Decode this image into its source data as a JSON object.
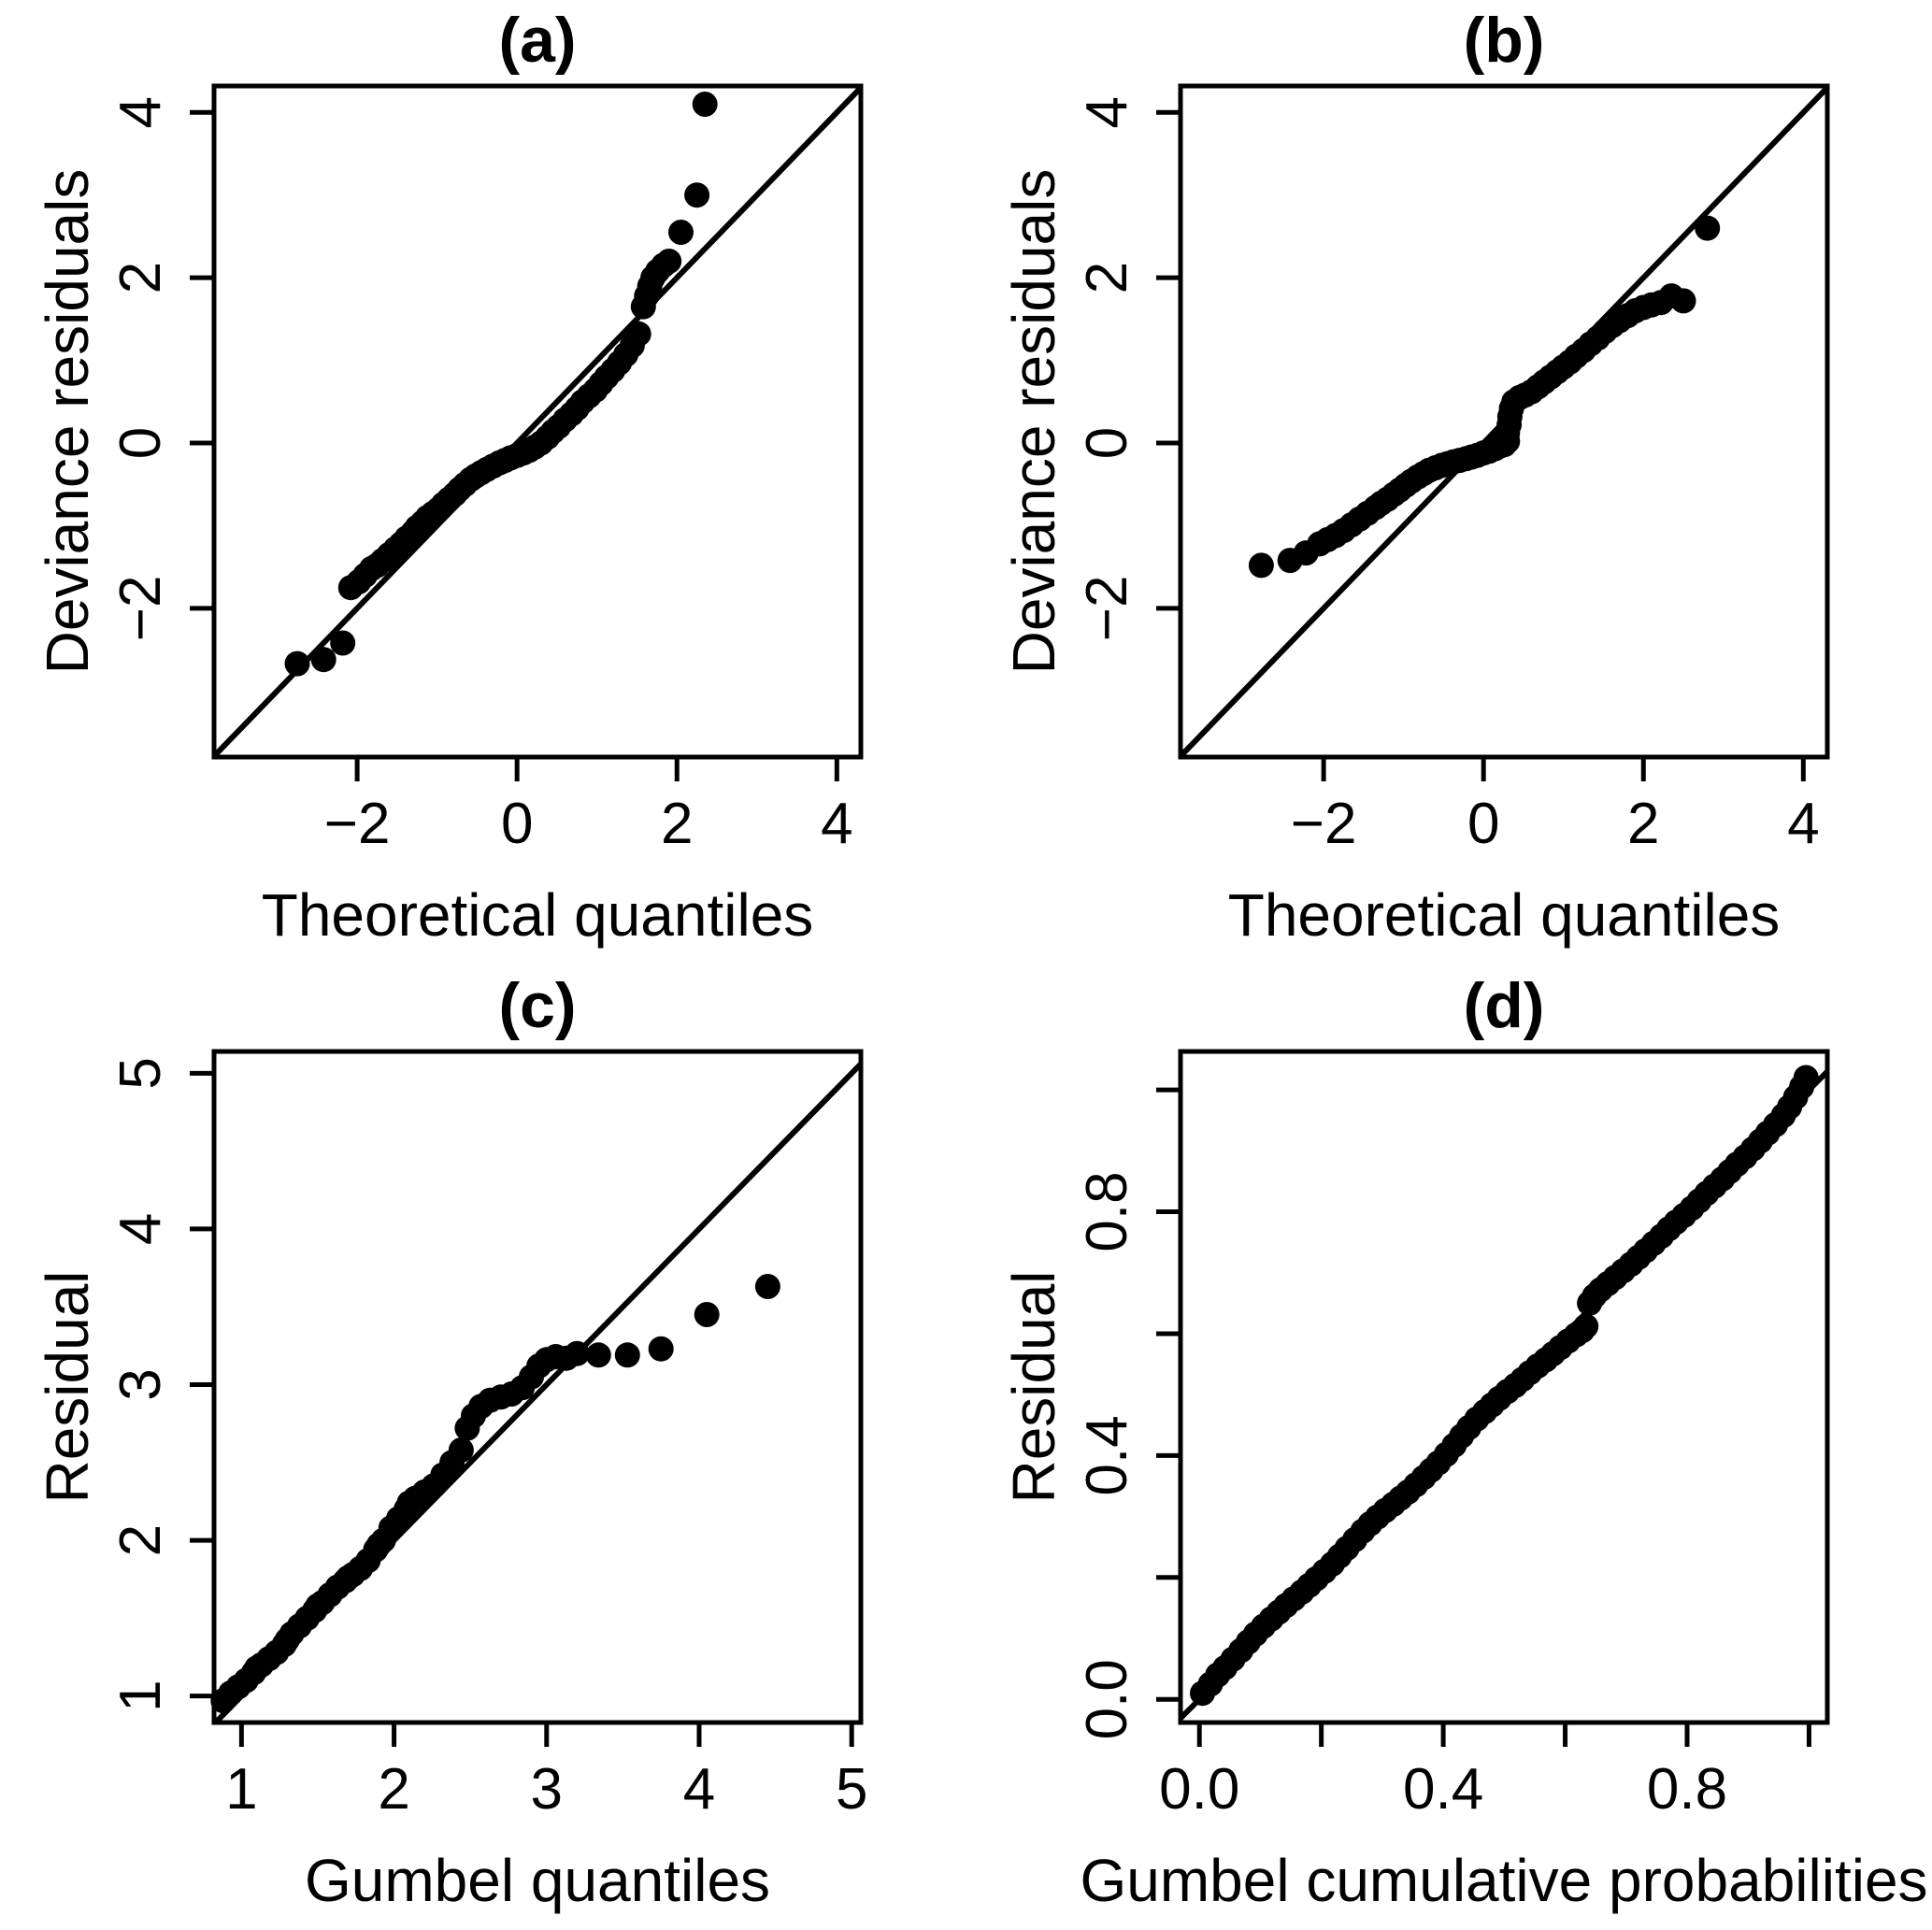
{
  "figure": {
    "background": "#ffffff",
    "foreground": "#000000",
    "description_visible_text_only": true
  },
  "chart_data": [
    {
      "panel": "a",
      "type": "scatter",
      "title": "(a)",
      "xlabel": "Theoretical quantiles",
      "ylabel": "Deviance residuals",
      "xlim": [
        -3.79,
        4.3
      ],
      "ylim": [
        -3.8,
        4.32
      ],
      "xticks": [
        -2,
        0,
        2,
        4
      ],
      "xtick_labels": [
        "−2",
        "0",
        "2",
        "4"
      ],
      "yticks": [
        -2,
        0,
        2,
        4
      ],
      "ytick_labels": [
        "−2",
        "0",
        "2",
        "4"
      ],
      "identity_line": true,
      "grid": false,
      "legend": null,
      "marker_color": "#000000",
      "points": [
        [
          -2.75,
          -2.67
        ],
        [
          -2.42,
          -2.62
        ],
        [
          -2.18,
          -2.42
        ],
        [
          -2.08,
          -1.75
        ],
        [
          -1.98,
          -1.68
        ],
        [
          -1.9,
          -1.6
        ],
        [
          -1.82,
          -1.52
        ],
        [
          -1.75,
          -1.48
        ],
        [
          -1.68,
          -1.42
        ],
        [
          -1.6,
          -1.35
        ],
        [
          -1.52,
          -1.28
        ],
        [
          -1.45,
          -1.22
        ],
        [
          -1.38,
          -1.15
        ],
        [
          -1.3,
          -1.08
        ],
        [
          -1.25,
          -1.02
        ],
        [
          -1.18,
          -0.96
        ],
        [
          -1.12,
          -0.9
        ],
        [
          -1.05,
          -0.85
        ],
        [
          -0.98,
          -0.8
        ],
        [
          -0.92,
          -0.74
        ],
        [
          -0.85,
          -0.68
        ],
        [
          -0.78,
          -0.62
        ],
        [
          -0.72,
          -0.56
        ],
        [
          -0.65,
          -0.5
        ],
        [
          -0.58,
          -0.44
        ],
        [
          -0.52,
          -0.4
        ],
        [
          -0.45,
          -0.36
        ],
        [
          -0.38,
          -0.32
        ],
        [
          -0.3,
          -0.28
        ],
        [
          -0.22,
          -0.24
        ],
        [
          -0.15,
          -0.21
        ],
        [
          -0.08,
          -0.18
        ],
        [
          0.0,
          -0.15
        ],
        [
          0.08,
          -0.12
        ],
        [
          0.15,
          -0.09
        ],
        [
          0.22,
          -0.05
        ],
        [
          0.3,
          0.0
        ],
        [
          0.38,
          0.07
        ],
        [
          0.45,
          0.14
        ],
        [
          0.52,
          0.2
        ],
        [
          0.6,
          0.28
        ],
        [
          0.68,
          0.35
        ],
        [
          0.75,
          0.42
        ],
        [
          0.82,
          0.5
        ],
        [
          0.9,
          0.57
        ],
        [
          0.98,
          0.64
        ],
        [
          1.05,
          0.72
        ],
        [
          1.12,
          0.8
        ],
        [
          1.2,
          0.88
        ],
        [
          1.28,
          0.97
        ],
        [
          1.36,
          1.07
        ],
        [
          1.44,
          1.18
        ],
        [
          1.52,
          1.32
        ],
        [
          1.58,
          1.65
        ],
        [
          1.62,
          1.78
        ],
        [
          1.66,
          1.9
        ],
        [
          1.7,
          2.0
        ],
        [
          1.76,
          2.08
        ],
        [
          1.83,
          2.15
        ],
        [
          1.9,
          2.2
        ],
        [
          2.05,
          2.55
        ],
        [
          2.25,
          3.0
        ],
        [
          2.35,
          4.1
        ]
      ]
    },
    {
      "panel": "b",
      "type": "scatter",
      "title": "(b)",
      "xlabel": "Theoretical quantiles",
      "ylabel": "Deviance residuals",
      "xlim": [
        -3.79,
        4.3
      ],
      "ylim": [
        -3.8,
        4.32
      ],
      "xticks": [
        -2,
        0,
        2,
        4
      ],
      "xtick_labels": [
        "−2",
        "0",
        "2",
        "4"
      ],
      "yticks": [
        -2,
        0,
        2,
        4
      ],
      "ytick_labels": [
        "−2",
        "0",
        "2",
        "4"
      ],
      "identity_line": true,
      "grid": false,
      "legend": null,
      "marker_color": "#000000",
      "points": [
        [
          -2.78,
          -1.48
        ],
        [
          -2.42,
          -1.42
        ],
        [
          -2.22,
          -1.33
        ],
        [
          -2.05,
          -1.22
        ],
        [
          -1.95,
          -1.17
        ],
        [
          -1.85,
          -1.12
        ],
        [
          -1.75,
          -1.06
        ],
        [
          -1.65,
          -0.99
        ],
        [
          -1.55,
          -0.92
        ],
        [
          -1.45,
          -0.85
        ],
        [
          -1.35,
          -0.78
        ],
        [
          -1.28,
          -0.73
        ],
        [
          -1.2,
          -0.68
        ],
        [
          -1.12,
          -0.62
        ],
        [
          -1.05,
          -0.57
        ],
        [
          -0.97,
          -0.51
        ],
        [
          -0.9,
          -0.46
        ],
        [
          -0.82,
          -0.41
        ],
        [
          -0.75,
          -0.37
        ],
        [
          -0.68,
          -0.33
        ],
        [
          -0.6,
          -0.3
        ],
        [
          -0.52,
          -0.27
        ],
        [
          -0.45,
          -0.25
        ],
        [
          -0.38,
          -0.23
        ],
        [
          -0.3,
          -0.21
        ],
        [
          -0.22,
          -0.19
        ],
        [
          -0.15,
          -0.17
        ],
        [
          -0.08,
          -0.15
        ],
        [
          0.0,
          -0.12
        ],
        [
          0.07,
          -0.1
        ],
        [
          0.14,
          -0.07
        ],
        [
          0.2,
          -0.04
        ],
        [
          0.26,
          -0.02
        ],
        [
          0.3,
          0.02
        ],
        [
          0.3,
          0.12
        ],
        [
          0.32,
          0.22
        ],
        [
          0.33,
          0.32
        ],
        [
          0.35,
          0.42
        ],
        [
          0.38,
          0.5
        ],
        [
          0.45,
          0.55
        ],
        [
          0.52,
          0.58
        ],
        [
          0.6,
          0.62
        ],
        [
          0.68,
          0.68
        ],
        [
          0.76,
          0.74
        ],
        [
          0.84,
          0.8
        ],
        [
          0.92,
          0.86
        ],
        [
          1.0,
          0.92
        ],
        [
          1.08,
          0.98
        ],
        [
          1.16,
          1.05
        ],
        [
          1.25,
          1.12
        ],
        [
          1.34,
          1.2
        ],
        [
          1.43,
          1.27
        ],
        [
          1.52,
          1.35
        ],
        [
          1.61,
          1.42
        ],
        [
          1.7,
          1.48
        ],
        [
          1.8,
          1.54
        ],
        [
          1.9,
          1.6
        ],
        [
          2.0,
          1.64
        ],
        [
          2.1,
          1.67
        ],
        [
          2.22,
          1.7
        ],
        [
          2.35,
          1.78
        ],
        [
          2.5,
          1.72
        ],
        [
          2.8,
          2.6
        ]
      ]
    },
    {
      "panel": "c",
      "type": "scatter",
      "title": "(c)",
      "xlabel": "Gumbel quantiles",
      "ylabel": "Residual",
      "xlim": [
        0.82,
        5.06
      ],
      "ylim": [
        0.83,
        5.14
      ],
      "xticks": [
        1,
        2,
        3,
        4,
        5
      ],
      "xtick_labels": [
        "1",
        "2",
        "3",
        "4",
        "5"
      ],
      "yticks": [
        1,
        2,
        3,
        4,
        5
      ],
      "ytick_labels": [
        "1",
        "2",
        "3",
        "4",
        "5"
      ],
      "identity_line": true,
      "grid": false,
      "legend": null,
      "marker_color": "#000000",
      "points": [
        [
          0.88,
          0.97
        ],
        [
          0.93,
          1.02
        ],
        [
          0.98,
          1.06
        ],
        [
          1.03,
          1.1
        ],
        [
          1.08,
          1.15
        ],
        [
          1.1,
          1.18
        ],
        [
          1.13,
          1.2
        ],
        [
          1.18,
          1.24
        ],
        [
          1.23,
          1.28
        ],
        [
          1.28,
          1.33
        ],
        [
          1.3,
          1.36
        ],
        [
          1.33,
          1.4
        ],
        [
          1.38,
          1.45
        ],
        [
          1.43,
          1.5
        ],
        [
          1.48,
          1.55
        ],
        [
          1.5,
          1.58
        ],
        [
          1.53,
          1.6
        ],
        [
          1.58,
          1.65
        ],
        [
          1.63,
          1.7
        ],
        [
          1.68,
          1.74
        ],
        [
          1.7,
          1.76
        ],
        [
          1.73,
          1.78
        ],
        [
          1.78,
          1.82
        ],
        [
          1.83,
          1.87
        ],
        [
          1.88,
          1.94
        ],
        [
          1.9,
          1.97
        ],
        [
          1.93,
          2.0
        ],
        [
          1.98,
          2.08
        ],
        [
          2.03,
          2.14
        ],
        [
          2.08,
          2.2
        ],
        [
          2.1,
          2.24
        ],
        [
          2.14,
          2.27
        ],
        [
          2.2,
          2.31
        ],
        [
          2.26,
          2.35
        ],
        [
          2.32,
          2.42
        ],
        [
          2.38,
          2.5
        ],
        [
          2.44,
          2.58
        ],
        [
          2.48,
          2.72
        ],
        [
          2.52,
          2.8
        ],
        [
          2.57,
          2.86
        ],
        [
          2.63,
          2.9
        ],
        [
          2.7,
          2.92
        ],
        [
          2.77,
          2.94
        ],
        [
          2.84,
          2.98
        ],
        [
          2.9,
          3.05
        ],
        [
          2.95,
          3.12
        ],
        [
          3.0,
          3.16
        ],
        [
          3.06,
          3.18
        ],
        [
          3.13,
          3.17
        ],
        [
          3.2,
          3.2
        ],
        [
          3.34,
          3.19
        ],
        [
          3.53,
          3.19
        ],
        [
          3.75,
          3.23
        ],
        [
          4.05,
          3.45
        ],
        [
          4.45,
          3.63
        ]
      ]
    },
    {
      "panel": "d",
      "type": "scatter",
      "title": "(d)",
      "xlabel": "Gumbel cumulative probabilities",
      "ylabel": "Residual",
      "xlim": [
        -0.031,
        1.03
      ],
      "ylim": [
        -0.038,
        1.063
      ],
      "xticks": [
        0,
        0.2,
        0.4,
        0.6,
        0.8,
        1.0
      ],
      "xtick_labels": [
        "0.0",
        "",
        "0.4",
        "",
        "0.8",
        ""
      ],
      "yticks": [
        0,
        0.2,
        0.4,
        0.6,
        0.8,
        1.0
      ],
      "ytick_labels": [
        "0.0",
        "",
        "0.4",
        "",
        "0.8",
        ""
      ],
      "identity_line": true,
      "grid": false,
      "legend": null,
      "marker_color": "#000000",
      "points": [
        [
          0.005,
          0.01
        ],
        [
          0.018,
          0.025
        ],
        [
          0.03,
          0.04
        ],
        [
          0.042,
          0.052
        ],
        [
          0.055,
          0.066
        ],
        [
          0.068,
          0.08
        ],
        [
          0.08,
          0.094
        ],
        [
          0.092,
          0.107
        ],
        [
          0.105,
          0.12
        ],
        [
          0.118,
          0.132
        ],
        [
          0.13,
          0.143
        ],
        [
          0.142,
          0.154
        ],
        [
          0.155,
          0.165
        ],
        [
          0.168,
          0.176
        ],
        [
          0.18,
          0.187
        ],
        [
          0.192,
          0.198
        ],
        [
          0.205,
          0.21
        ],
        [
          0.218,
          0.222
        ],
        [
          0.23,
          0.235
        ],
        [
          0.242,
          0.248
        ],
        [
          0.255,
          0.262
        ],
        [
          0.268,
          0.276
        ],
        [
          0.28,
          0.288
        ],
        [
          0.292,
          0.299
        ],
        [
          0.305,
          0.31
        ],
        [
          0.318,
          0.32
        ],
        [
          0.33,
          0.33
        ],
        [
          0.342,
          0.34
        ],
        [
          0.355,
          0.352
        ],
        [
          0.368,
          0.364
        ],
        [
          0.38,
          0.376
        ],
        [
          0.392,
          0.388
        ],
        [
          0.405,
          0.402
        ],
        [
          0.418,
          0.417
        ],
        [
          0.43,
          0.432
        ],
        [
          0.442,
          0.446
        ],
        [
          0.455,
          0.46
        ],
        [
          0.468,
          0.472
        ],
        [
          0.48,
          0.483
        ],
        [
          0.492,
          0.494
        ],
        [
          0.505,
          0.505
        ],
        [
          0.518,
          0.515
        ],
        [
          0.53,
          0.525
        ],
        [
          0.542,
          0.536
        ],
        [
          0.555,
          0.547
        ],
        [
          0.568,
          0.557
        ],
        [
          0.58,
          0.567
        ],
        [
          0.592,
          0.577
        ],
        [
          0.605,
          0.588
        ],
        [
          0.618,
          0.598
        ],
        [
          0.628,
          0.605
        ],
        [
          0.634,
          0.612
        ],
        [
          0.64,
          0.65
        ],
        [
          0.648,
          0.662
        ],
        [
          0.658,
          0.672
        ],
        [
          0.67,
          0.682
        ],
        [
          0.682,
          0.692
        ],
        [
          0.695,
          0.703
        ],
        [
          0.708,
          0.714
        ],
        [
          0.72,
          0.725
        ],
        [
          0.732,
          0.736
        ],
        [
          0.745,
          0.748
        ],
        [
          0.758,
          0.76
        ],
        [
          0.77,
          0.772
        ],
        [
          0.782,
          0.783
        ],
        [
          0.795,
          0.794
        ],
        [
          0.808,
          0.806
        ],
        [
          0.82,
          0.818
        ],
        [
          0.832,
          0.83
        ],
        [
          0.845,
          0.842
        ],
        [
          0.858,
          0.854
        ],
        [
          0.87,
          0.866
        ],
        [
          0.882,
          0.878
        ],
        [
          0.895,
          0.89
        ],
        [
          0.908,
          0.903
        ],
        [
          0.92,
          0.916
        ],
        [
          0.932,
          0.929
        ],
        [
          0.945,
          0.943
        ],
        [
          0.958,
          0.958
        ],
        [
          0.968,
          0.972
        ],
        [
          0.978,
          0.988
        ],
        [
          0.988,
          1.005
        ],
        [
          0.995,
          1.02
        ]
      ]
    }
  ]
}
